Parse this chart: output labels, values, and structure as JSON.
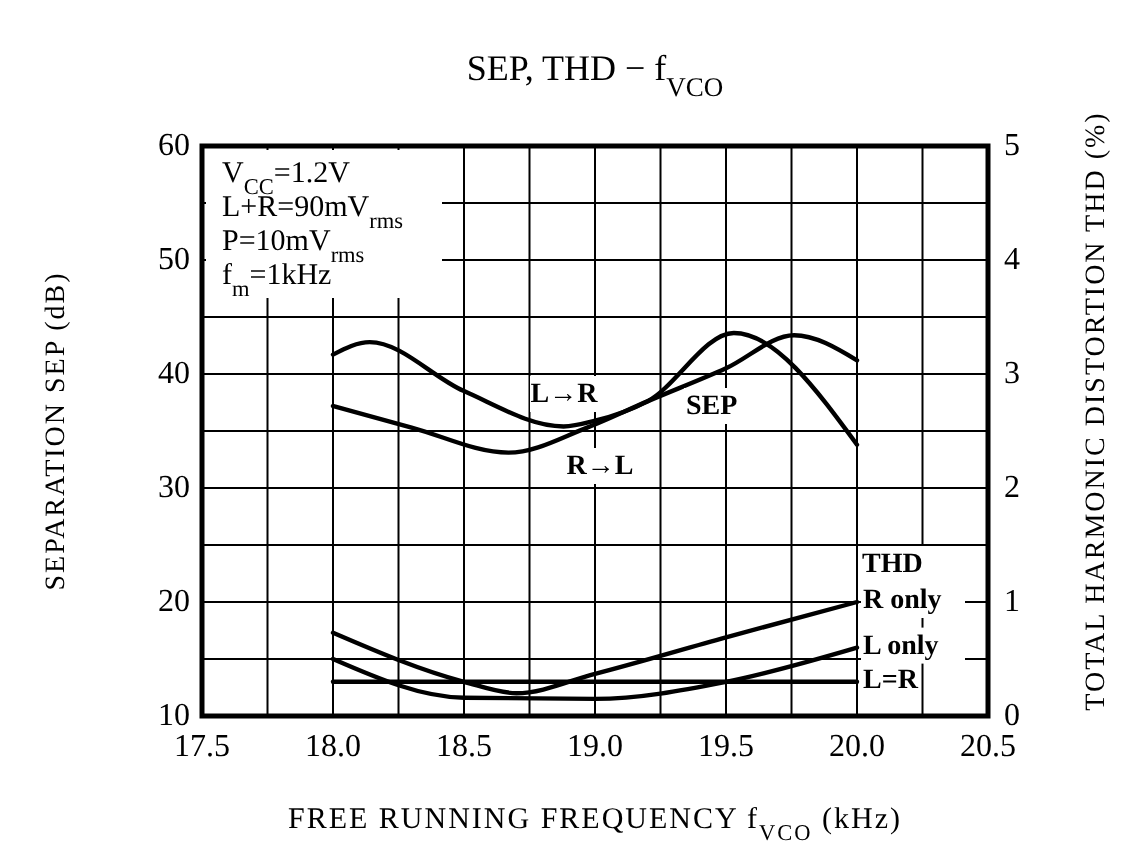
{
  "chart_data": {
    "type": "line",
    "title": "SEP, THD − f$_{VCO}$",
    "xlabel": "FREE RUNNING FREQUENCY f$_{VCO}$ (kHz)",
    "ylabel": "SEPARATION SEP  (dB)",
    "y2label": "TOTAL HARMONIC DISTORTION THD  (%)",
    "xlim": [
      17.5,
      20.5
    ],
    "xticks": [
      17.5,
      {
        "value": 17.75,
        "label": null
      },
      "18.0",
      {
        "value": 18.25,
        "label": null
      },
      18.5,
      {
        "value": 18.75,
        "label": null
      },
      "19.0",
      {
        "value": 19.25,
        "label": null
      },
      19.5,
      {
        "value": 19.75,
        "label": null
      },
      "20.0",
      {
        "value": 20.25,
        "label": null
      },
      20.5
    ],
    "ylim": [
      10,
      60
    ],
    "yticks": [
      10,
      {
        "value": 15,
        "label": null
      },
      20,
      {
        "value": 25,
        "label": null
      },
      30,
      {
        "value": 35,
        "label": null
      },
      40,
      {
        "value": 45,
        "label": null
      },
      50,
      {
        "value": 55,
        "label": null
      },
      60
    ],
    "y2lim": [
      0,
      5
    ],
    "y2ticks": [
      0,
      1,
      2,
      3,
      4,
      5
    ],
    "grid": true,
    "marker": "none",
    "line_style": "solid",
    "series": [
      {
        "name": "L→R",
        "color": "#000000",
        "x": [
          18.0,
          18.14,
          18.5,
          18.88,
          19.0,
          19.2,
          19.53,
          20.0
        ],
        "values": [
          41.7,
          42.8,
          38.5,
          35.4,
          35.9,
          37.6,
          43.6,
          33.8
        ]
      },
      {
        "name": "R→L",
        "color": "#000000",
        "x": [
          18.0,
          18.3,
          18.67,
          18.97,
          19.2,
          19.5,
          19.76,
          20.0
        ],
        "values": [
          37.2,
          35.3,
          33.1,
          35.3,
          37.6,
          40.5,
          43.4,
          41.2
        ]
      },
      {
        "name": "R only",
        "color": "#000000",
        "axis": "y2",
        "x": [
          18.0,
          18.5,
          18.7,
          19.0,
          19.5,
          20.0
        ],
        "values": [
          0.73,
          0.3,
          0.2,
          0.37,
          0.69,
          1.0
        ]
      },
      {
        "name": "L only",
        "color": "#000000",
        "axis": "y2",
        "x": [
          18.0,
          18.5,
          19.0,
          19.5,
          20.0
        ],
        "values": [
          0.5,
          0.16,
          0.15,
          0.3,
          0.6
        ]
      },
      {
        "name": "L=R",
        "color": "#000000",
        "axis": "y2",
        "x": [
          18.0,
          20.0
        ],
        "values": [
          0.3,
          0.3
        ]
      }
    ],
    "annotations": [
      "V$_{CC}$=1.2V",
      "L+R=90mV$_{rms}$",
      "P=10mV$_{rms}$",
      "f$_{m}$=1kHz",
      "SEP",
      "THD"
    ]
  }
}
